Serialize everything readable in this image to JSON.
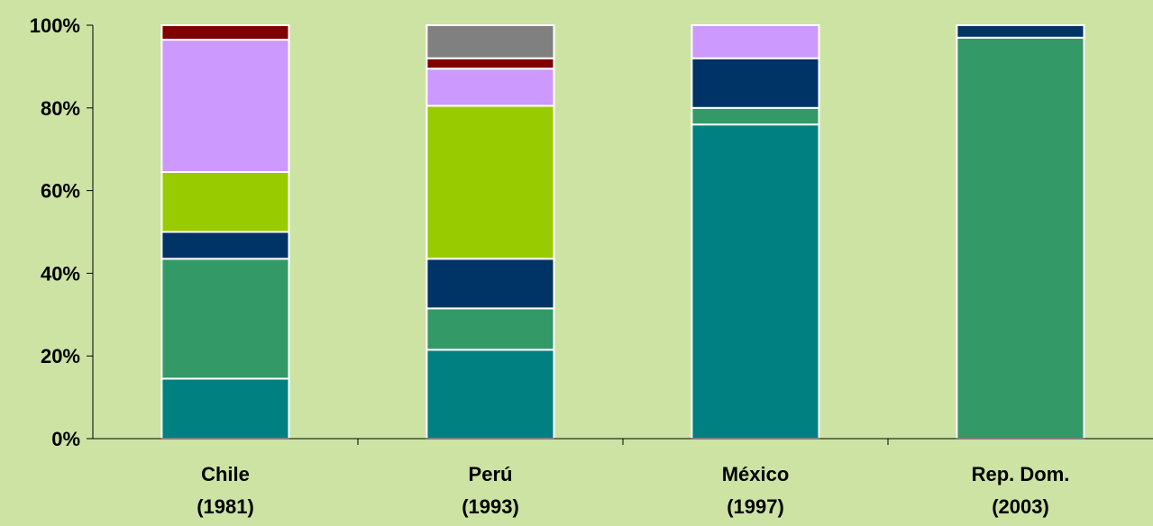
{
  "chart_data": {
    "type": "bar",
    "stacked": true,
    "title": "",
    "xlabel": "",
    "ylabel": "",
    "ylim": [
      0,
      100
    ],
    "y_ticks": [
      "0%",
      "20%",
      "40%",
      "60%",
      "80%",
      "100%"
    ],
    "grid": false,
    "legend": "none",
    "categories": [
      [
        "Chile",
        "(1981)"
      ],
      [
        "Perú",
        "(1993)"
      ],
      [
        "México",
        "(1997)"
      ],
      [
        "Rep. Dom.",
        "(2003)"
      ]
    ],
    "series": [
      {
        "color": "#008080",
        "values": [
          14.5,
          21.5,
          76,
          0
        ]
      },
      {
        "color": "#339966",
        "values": [
          29,
          10,
          4,
          97
        ]
      },
      {
        "color": "#003366",
        "values": [
          6.5,
          12,
          12,
          3
        ]
      },
      {
        "color": "#99cc00",
        "values": [
          14.5,
          37,
          0,
          0
        ]
      },
      {
        "color": "#cc99ff",
        "values": [
          32,
          9,
          8,
          0
        ]
      },
      {
        "color": "#800000",
        "values": [
          3.5,
          2.5,
          0,
          0
        ]
      },
      {
        "color": "#808080",
        "values": [
          0,
          8,
          0,
          0
        ]
      }
    ]
  }
}
